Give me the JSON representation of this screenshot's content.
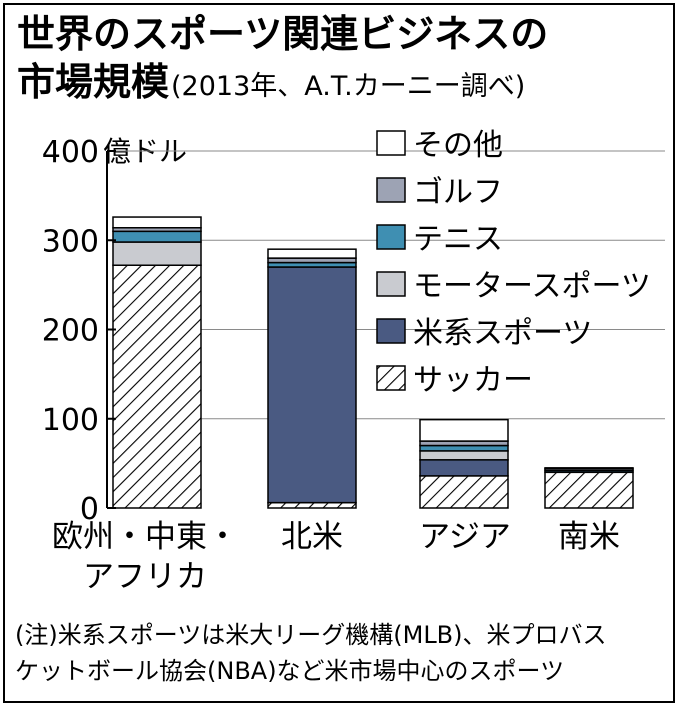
{
  "chart_data": {
    "type": "bar",
    "stacked": true,
    "title_line1": "世界のスポーツ関連ビジネスの",
    "title_line2": "市場規模",
    "subtitle": "(2013年、A.T.カーニー調べ)",
    "unit": "億ドル",
    "categories": [
      [
        "欧州・中東・",
        "アフリカ"
      ],
      [
        "北米"
      ],
      [
        "アジア"
      ],
      [
        "南米"
      ]
    ],
    "ylim": [
      0,
      400
    ],
    "yticks": [
      0,
      100,
      200,
      300,
      400
    ],
    "series": [
      {
        "name": "サッカー",
        "values": [
          272,
          6,
          36,
          40
        ],
        "color": "#ffffff",
        "pattern": "hatch"
      },
      {
        "name": "米系スポーツ",
        "values": [
          0,
          264,
          18,
          0
        ],
        "color": "#4a5a82"
      },
      {
        "name": "モーター スポーツ",
        "values": [
          26,
          0,
          10,
          0
        ],
        "color": "#c9cbd0"
      },
      {
        "name": "テニス",
        "values": [
          12,
          5,
          6,
          2
        ],
        "color": "#3f8fb2"
      },
      {
        "name": "ゴルフ",
        "values": [
          4,
          5,
          5,
          2
        ],
        "color": "#9da3b4"
      },
      {
        "name": "その他",
        "values": [
          12,
          10,
          24,
          1
        ],
        "color": "#ffffff"
      }
    ],
    "legend_order": [
      "その他",
      "ゴルフ",
      "テニス",
      "モーター スポーツ",
      "米系スポーツ",
      "サッカー"
    ],
    "legend_labels": {
      "その他": "その他",
      "ゴルフ": "ゴルフ",
      "テニス": "テニス",
      "モーター スポーツ": "モータースポーツ",
      "米系スポーツ": "米系スポーツ",
      "サッカー": "サッカー"
    },
    "note_line1": "(注)米系スポーツは米大リーグ機構(MLB)、米プロバス",
    "note_line2": "ケットボール協会(NBA)など米市場中心のスポーツ"
  }
}
